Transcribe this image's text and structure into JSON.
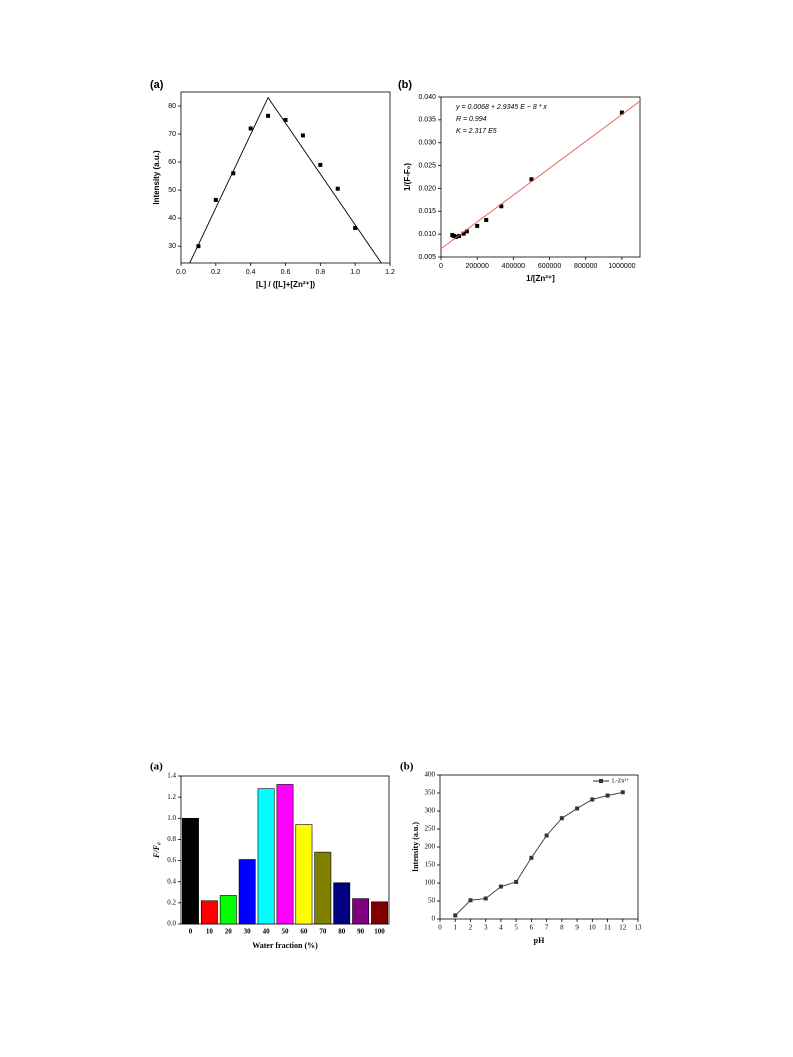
{
  "chart_data": [
    {
      "type": "scatter",
      "title": "(a)",
      "x_label": "[L] / ([L]+[Zn²⁺])",
      "y_label": "Intensity (a.u.)",
      "xlim": [
        0,
        1.2
      ],
      "xticks": [
        {
          "value": 0,
          "label": "0.0"
        },
        0.2,
        0.4,
        0.6,
        0.8,
        {
          "value": 1,
          "label": "1.0"
        },
        1.2
      ],
      "ylim": [
        24,
        85
      ],
      "yticks": [
        30,
        40,
        50,
        60,
        70,
        80
      ],
      "series": [
        {
          "style": "markers",
          "color": "#000000",
          "x": [
            0.1,
            0.2,
            0.3,
            0.4,
            0.5,
            0.6,
            0.7,
            0.8,
            0.9,
            1
          ],
          "values": [
            30,
            46.5,
            56,
            72,
            76.5,
            75,
            69.5,
            59,
            50.5,
            36.5
          ]
        },
        {
          "style": "line",
          "color": "#000000",
          "x": [
            0.05,
            0.5,
            1.15
          ],
          "values": [
            24,
            83,
            24
          ]
        }
      ]
    },
    {
      "type": "scatter",
      "title": "(b)",
      "x_label": "1/[Zn²⁺]",
      "y_label": "1/(F-F₀)",
      "annotations": [
        "y = 0.0068 + 2.9345 E − 8 * x",
        "R = 0.994",
        "K = 2.317 E5"
      ],
      "xlim": [
        0,
        1100000
      ],
      "xticks": [
        0,
        200000,
        400000,
        600000,
        800000,
        1000000
      ],
      "ylim": [
        0.005,
        0.04
      ],
      "yticks": [
        {
          "value": 0.005,
          "label": "0.005"
        },
        {
          "value": 0.01,
          "label": "0.010"
        },
        {
          "value": 0.015,
          "label": "0.015"
        },
        {
          "value": 0.02,
          "label": "0.020"
        },
        {
          "value": 0.025,
          "label": "0.025"
        },
        {
          "value": 0.03,
          "label": "0.030"
        },
        {
          "value": 0.035,
          "label": "0.035"
        },
        {
          "value": 0.04,
          "label": "0.040"
        }
      ],
      "series": [
        {
          "style": "markers",
          "color": "#000000",
          "x": [
            62500,
            71400,
            83300,
            100000,
            125000,
            142900,
            200000,
            250000,
            333300,
            500000,
            1000000
          ],
          "values": [
            0.0098,
            0.0096,
            0.0094,
            0.0096,
            0.0101,
            0.0106,
            0.0118,
            0.0131,
            0.0161,
            0.022,
            0.0366
          ]
        },
        {
          "style": "line",
          "color": "#e8564a",
          "x": [
            0,
            1100000
          ],
          "values": [
            0.0068,
            0.0391
          ]
        }
      ]
    },
    {
      "type": "bar",
      "title": "(a)",
      "x_label": "Water fraction (%)",
      "y_label": "F/F₀",
      "categories": [
        "0",
        "10",
        "20",
        "30",
        "40",
        "50",
        "60",
        "70",
        "80",
        "90",
        "100"
      ],
      "values": [
        1.0,
        0.22,
        0.27,
        0.61,
        1.28,
        1.32,
        0.94,
        0.68,
        0.39,
        0.24,
        0.21
      ],
      "colors": [
        "#000000",
        "#ff0000",
        "#00ff00",
        "#0000ff",
        "#00ffff",
        "#ff00ff",
        "#ffff00",
        "#808000",
        "#000080",
        "#800080",
        "#800000"
      ],
      "ylim": [
        0,
        1.4
      ],
      "yticks": [
        {
          "value": 0,
          "label": "0.0"
        },
        0.2,
        0.4,
        0.6,
        0.8,
        {
          "value": 1,
          "label": "1.0"
        },
        1.2,
        1.4
      ]
    },
    {
      "type": "line",
      "title": "(b)",
      "x_label": "pH",
      "y_label": "Intensity (a.u.)",
      "legend": "upper right",
      "xlim": [
        0,
        13
      ],
      "xticks": [
        0,
        1,
        2,
        3,
        4,
        5,
        6,
        7,
        8,
        9,
        10,
        11,
        12,
        13
      ],
      "ylim": [
        0,
        400
      ],
      "yticks": [
        0,
        50,
        100,
        150,
        200,
        250,
        300,
        350,
        400
      ],
      "series": [
        {
          "name": "L-Zn²⁺",
          "color": "#333333",
          "x": [
            1,
            2,
            3,
            4,
            5,
            6,
            7,
            8,
            9,
            10,
            11,
            12
          ],
          "values": [
            10,
            52,
            57,
            90,
            103,
            170,
            232,
            280,
            307,
            332,
            343,
            352
          ]
        }
      ]
    }
  ]
}
